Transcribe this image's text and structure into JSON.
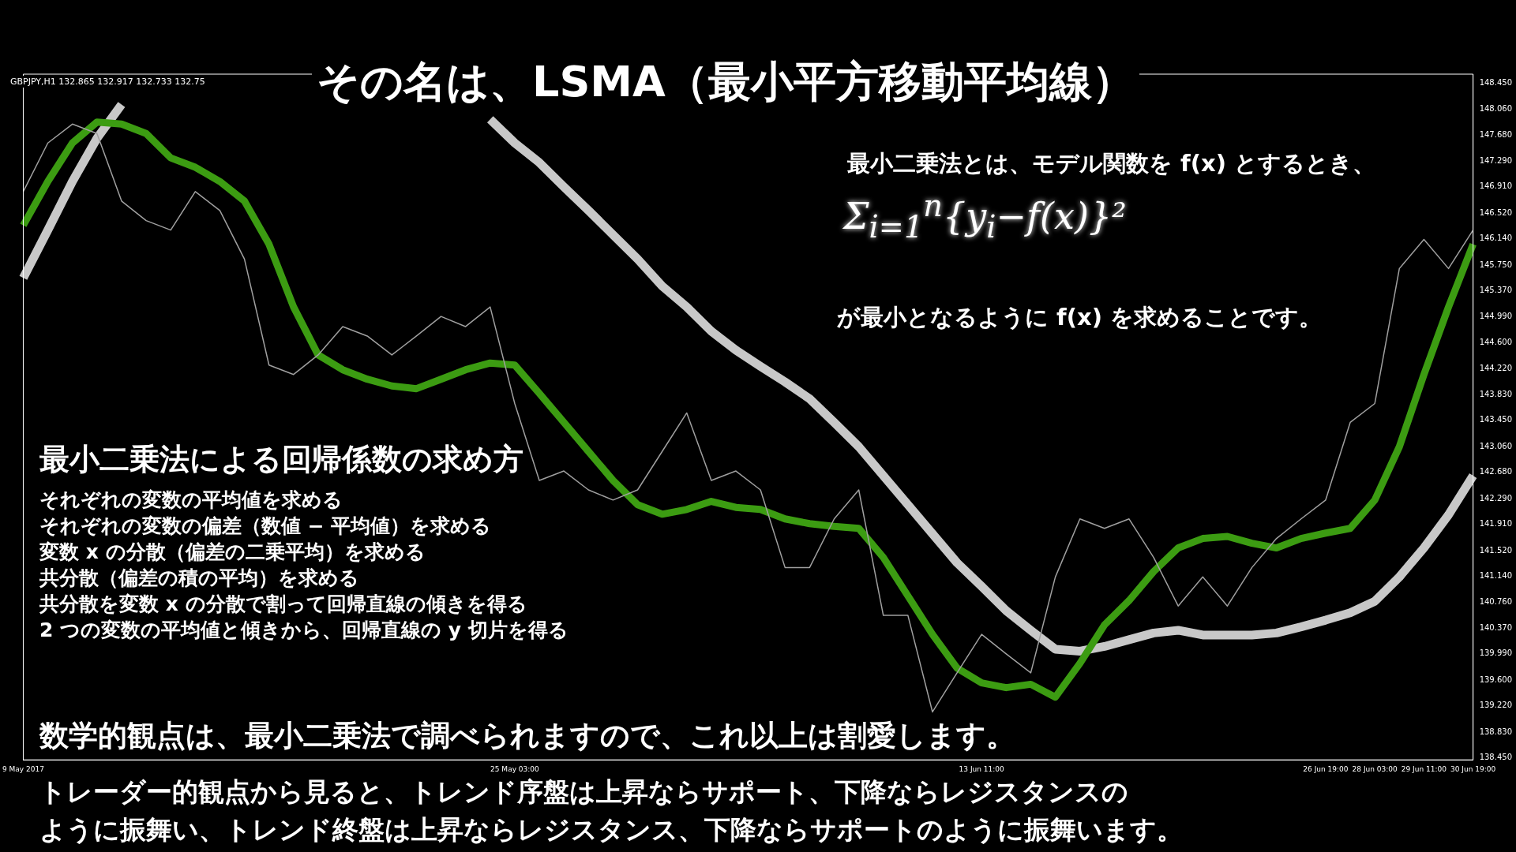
{
  "chart_data": {
    "type": "line",
    "title": "その名は、LSMA（最小平方移動平均線）",
    "categories": [
      "9 May 2017",
      null,
      null,
      null,
      null,
      null,
      null,
      null,
      null,
      null,
      null,
      null,
      null,
      null,
      null,
      null,
      null,
      null,
      null,
      null,
      "25 May 03:00",
      null,
      null,
      null,
      null,
      null,
      null,
      null,
      null,
      null,
      null,
      null,
      null,
      null,
      null,
      null,
      null,
      null,
      null,
      "13 Jun 11:00",
      null,
      null,
      null,
      null,
      null,
      null,
      null,
      null,
      null,
      null,
      null,
      null,
      null,
      "26 Jun 19:00",
      null,
      "28 Jun 03:00",
      null,
      "29 Jun 11:00",
      null,
      "30 Jun 19:00"
    ],
    "series": [
      {
        "color": "#a0a0a0",
        "values": [
          146.84,
          147.56,
          147.84,
          147.7,
          146.7,
          146.41,
          146.27,
          146.84,
          146.56,
          145.84,
          144.27,
          144.13,
          144.42,
          144.84,
          144.7,
          144.42,
          144.7,
          144.99,
          144.84,
          145.13,
          143.7,
          142.56,
          142.7,
          142.42,
          142.27,
          142.42,
          142.99,
          143.56,
          142.56,
          142.7,
          142.42,
          141.27,
          141.27,
          141.99,
          142.42,
          140.56,
          140.56,
          139.13,
          139.71,
          140.28,
          139.99,
          139.71,
          141.13,
          141.99,
          141.85,
          141.99,
          141.42,
          140.7,
          141.13,
          140.7,
          141.27,
          141.7,
          141.99,
          142.27,
          143.42,
          143.7,
          145.7,
          146.13,
          145.7,
          146.27
        ]
      },
      {
        "color": "#3c9c12",
        "values": [
          146.34,
          146.99,
          147.56,
          147.87,
          147.84,
          147.7,
          147.34,
          147.2,
          146.99,
          146.7,
          146.06,
          145.13,
          144.42,
          144.2,
          144.06,
          143.96,
          143.92,
          144.06,
          144.2,
          144.3,
          144.27,
          143.85,
          143.42,
          142.99,
          142.56,
          142.2,
          142.06,
          142.13,
          142.25,
          142.16,
          142.13,
          141.99,
          141.92,
          141.88,
          141.85,
          141.42,
          140.85,
          140.28,
          139.78,
          139.56,
          139.49,
          139.54,
          139.35,
          139.85,
          140.42,
          140.78,
          141.21,
          141.56,
          141.7,
          141.73,
          141.63,
          141.56,
          141.7,
          141.78,
          141.85,
          142.27,
          143.06,
          144.13,
          145.13,
          146.06
        ]
      },
      {
        "color": "#c8c8c8",
        "values": [
          145.56,
          146.27,
          146.99,
          147.63,
          148.13,
          null,
          null,
          null,
          null,
          null,
          null,
          null,
          null,
          null,
          null,
          null,
          null,
          null,
          null,
          147.91,
          147.56,
          147.27,
          146.91,
          146.56,
          146.2,
          145.84,
          145.44,
          145.13,
          144.77,
          144.49,
          144.25,
          144.02,
          143.77,
          143.42,
          143.06,
          142.63,
          142.2,
          141.77,
          141.34,
          140.99,
          140.63,
          140.34,
          140.06,
          140.03,
          140.1,
          140.2,
          140.3,
          140.34,
          140.27,
          140.27,
          140.27,
          140.3,
          140.39,
          140.49,
          140.6,
          140.77,
          141.13,
          141.56,
          142.05,
          142.63
        ]
      }
    ],
    "ylim": [
      138.42,
      148.58
    ],
    "yticks": [
      {
        "value": 148.45,
        "label": "148.450"
      },
      {
        "value": 148.06,
        "label": "148.060"
      },
      {
        "value": 147.68,
        "label": "147.680"
      },
      {
        "value": 147.29,
        "label": "147.290"
      },
      {
        "value": 146.91,
        "label": "146.910"
      },
      {
        "value": 146.52,
        "label": "146.520"
      },
      {
        "value": 146.14,
        "label": "146.140"
      },
      {
        "value": 145.75,
        "label": "145.750"
      },
      {
        "value": 145.37,
        "label": "145.370"
      },
      {
        "value": 144.99,
        "label": "144.990"
      },
      {
        "value": 144.6,
        "label": "144.600"
      },
      {
        "value": 144.22,
        "label": "144.220"
      },
      {
        "value": 143.83,
        "label": "143.830"
      },
      {
        "value": 143.45,
        "label": "143.450"
      },
      {
        "value": 143.06,
        "label": "143.060"
      },
      {
        "value": 142.68,
        "label": "142.680"
      },
      {
        "value": 142.29,
        "label": "142.290"
      },
      {
        "value": 141.91,
        "label": "141.910"
      },
      {
        "value": 141.52,
        "label": "141.520"
      },
      {
        "value": 141.14,
        "label": "141.140"
      },
      {
        "value": 140.76,
        "label": "140.760"
      },
      {
        "value": 140.37,
        "label": "140.370"
      },
      {
        "value": 139.99,
        "label": "139.990"
      },
      {
        "value": 139.6,
        "label": "139.600"
      },
      {
        "value": 139.22,
        "label": "139.220"
      },
      {
        "value": 138.83,
        "label": "138.830"
      },
      {
        "value": 138.45,
        "label": "138.450"
      }
    ],
    "grid": false,
    "legend": false,
    "annotations": [
      "GBPJPY,H1  132.865 132.917 132.733 132.75",
      "最小二乗法とは、モデル関数を f(x) とするとき、",
      "Σ$_{i=1}$$^{n}${y$_{i}$−f(x)}²",
      "が最小となるように f(x) を求めることです。",
      "最小二乗法による回帰係数の求め方",
      "それぞれの変数の平均値を求める",
      "それぞれの変数の偏差（数値 − 平均値）を求める",
      "変数 x の分散（偏差の二乗平均）を求める",
      "共分散（偏差の積の平均）を求める",
      "共分散を変数 x の分散で割って回帰直線の傾きを得る",
      "2 つの変数の平均値と傾きから、回帰直線の y 切片を得る",
      "数学的観点は、最小二乗法で調べられますので、これ以上は割愛します。",
      "トレーダー的観点から見ると、トレンド序盤は上昇ならサポート、下降ならレジスタンスの",
      "ように振舞い、トレンド終盤は上昇ならレジスタンス、下降ならサポートのように振舞います。"
    ]
  }
}
